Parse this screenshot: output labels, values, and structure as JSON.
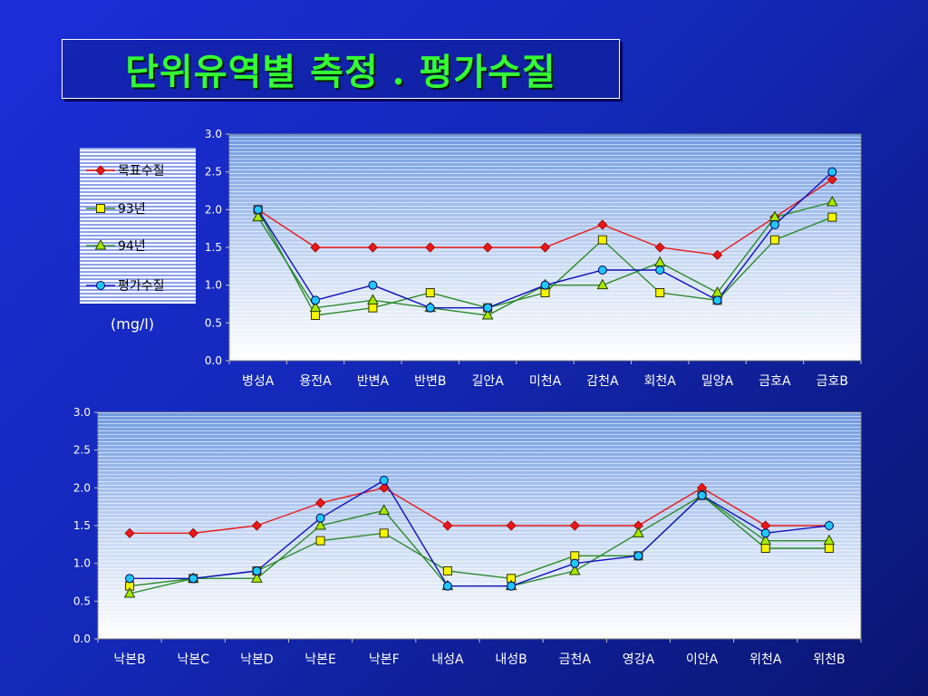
{
  "title": "단위유역별 측정 . 평가수질",
  "unit": "(mg/l)",
  "colors": {
    "target": "#e81818",
    "y93": "#f5f500",
    "y94": "#a8e800",
    "eval": "#20c8f8",
    "target_line": "#e81818",
    "y93_line": "#2a8a2a",
    "y94_line": "#2a8a2a",
    "eval_line": "#1010c0"
  },
  "legend": [
    {
      "key": "target",
      "label": "목표수질",
      "marker": "diamond"
    },
    {
      "key": "y93",
      "label": "93년",
      "marker": "square"
    },
    {
      "key": "y94",
      "label": "94년",
      "marker": "triangle"
    },
    {
      "key": "eval",
      "label": "평가수질",
      "marker": "circle"
    }
  ],
  "chart_data": [
    {
      "type": "line",
      "categories": [
        "병성A",
        "용전A",
        "반변A",
        "반변B",
        "길안A",
        "미천A",
        "감천A",
        "회천A",
        "밀양A",
        "금호A",
        "금호B"
      ],
      "ylim": [
        0,
        3.0
      ],
      "yticks": [
        "0.0",
        "0.5",
        "1.0",
        "1.5",
        "2.0",
        "2.5",
        "3.0"
      ],
      "grid": true,
      "legend_position": "left",
      "series": [
        {
          "key": "target",
          "name": "목표수질",
          "marker": "diamond",
          "values": [
            2.0,
            1.5,
            1.5,
            1.5,
            1.5,
            1.5,
            1.8,
            1.5,
            1.4,
            1.9,
            2.4
          ]
        },
        {
          "key": "y93",
          "name": "93년",
          "marker": "square",
          "values": [
            2.0,
            0.6,
            0.7,
            0.9,
            0.7,
            0.9,
            1.6,
            0.9,
            0.8,
            1.6,
            1.9
          ]
        },
        {
          "key": "y94",
          "name": "94년",
          "marker": "triangle",
          "values": [
            1.9,
            0.7,
            0.8,
            0.7,
            0.6,
            1.0,
            1.0,
            1.3,
            0.9,
            1.9,
            2.1
          ]
        },
        {
          "key": "eval",
          "name": "평가수질",
          "marker": "circle",
          "values": [
            2.0,
            0.8,
            1.0,
            0.7,
            0.7,
            1.0,
            1.2,
            1.2,
            0.8,
            1.8,
            2.5
          ]
        }
      ]
    },
    {
      "type": "line",
      "categories": [
        "낙본B",
        "낙본C",
        "낙본D",
        "낙본E",
        "낙본F",
        "내성A",
        "내성B",
        "금천A",
        "영강A",
        "이안A",
        "위천A",
        "위천B"
      ],
      "ylim": [
        0,
        3.0
      ],
      "yticks": [
        "0.0",
        "0.5",
        "1.0",
        "1.5",
        "2.0",
        "2.5",
        "3.0"
      ],
      "grid": true,
      "series": [
        {
          "key": "target",
          "name": "목표수질",
          "marker": "diamond",
          "values": [
            1.4,
            1.4,
            1.5,
            1.8,
            2.0,
            1.5,
            1.5,
            1.5,
            1.5,
            2.0,
            1.5,
            1.5
          ]
        },
        {
          "key": "y93",
          "name": "93년",
          "marker": "square",
          "values": [
            0.7,
            0.8,
            0.9,
            1.3,
            1.4,
            0.9,
            0.8,
            1.1,
            1.1,
            1.9,
            1.2,
            1.2
          ]
        },
        {
          "key": "y94",
          "name": "94년",
          "marker": "triangle",
          "values": [
            0.6,
            0.8,
            0.8,
            1.5,
            1.7,
            0.7,
            0.7,
            0.9,
            1.4,
            1.9,
            1.3,
            1.3
          ]
        },
        {
          "key": "eval",
          "name": "평가수질",
          "marker": "circle",
          "values": [
            0.8,
            0.8,
            0.9,
            1.6,
            2.1,
            0.7,
            0.7,
            1.0,
            1.1,
            1.9,
            1.4,
            1.5
          ]
        }
      ]
    }
  ]
}
